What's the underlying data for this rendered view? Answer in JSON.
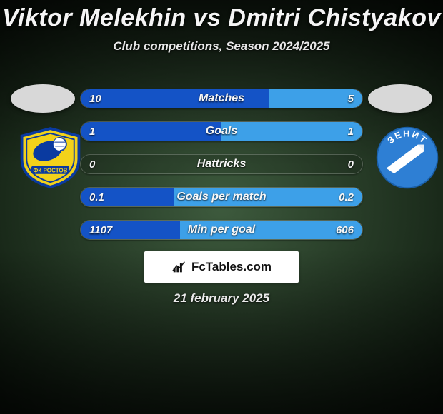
{
  "background": {
    "type": "radial-gradient",
    "center_color": "#3d5a3d",
    "edge_color": "#0a120a"
  },
  "title": "Viktor Melekhin vs Dmitri Chistyakov",
  "subtitle": "Club competitions, Season 2024/2025",
  "player_left": {
    "photo_placeholder_color": "#d8d8d8",
    "club": {
      "name": "FC Rostov",
      "shield_fill": "#f2d21a",
      "shield_border": "#0a3aa0",
      "inner_blue": "#0a3aa0"
    }
  },
  "player_right": {
    "photo_placeholder_color": "#d8d8d8",
    "club": {
      "name": "Zenit",
      "circle_fill": "#2e7fd4",
      "arrow_fill": "#ffffff",
      "text": "ЗЕНИТ"
    }
  },
  "bar_colors": {
    "left": "#1453c6",
    "right": "#3da0e8",
    "track": "rgba(0,0,0,0.12)",
    "border": "rgba(255,255,255,0.22)"
  },
  "typography": {
    "title_fontsize": 34,
    "subtitle_fontsize": 17,
    "stat_label_fontsize": 16,
    "value_fontsize": 15,
    "font_weight": 700,
    "font_style": "italic",
    "text_color": "#f5f5f5"
  },
  "stats": [
    {
      "label": "Matches",
      "left_val": "10",
      "right_val": "5",
      "left_pct": 66.7,
      "right_pct": 33.3
    },
    {
      "label": "Goals",
      "left_val": "1",
      "right_val": "1",
      "left_pct": 50.0,
      "right_pct": 50.0
    },
    {
      "label": "Hattricks",
      "left_val": "0",
      "right_val": "0",
      "left_pct": 0.0,
      "right_pct": 0.0
    },
    {
      "label": "Goals per match",
      "left_val": "0.1",
      "right_val": "0.2",
      "left_pct": 33.3,
      "right_pct": 66.7
    },
    {
      "label": "Min per goal",
      "left_val": "1107",
      "right_val": "606",
      "left_pct": 35.4,
      "right_pct": 64.6
    }
  ],
  "brand": {
    "text": "FcTables.com",
    "box_bg": "#ffffff",
    "text_color": "#111111"
  },
  "date": "21 february 2025"
}
